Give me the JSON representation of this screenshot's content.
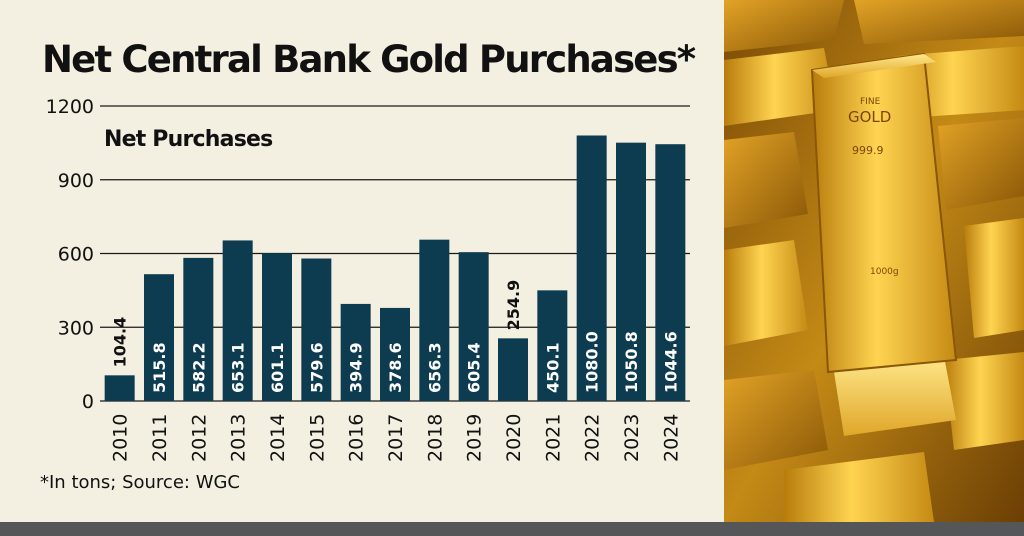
{
  "title": "Net Central Bank Gold Purchases*",
  "footnote": "*In tons; Source: WGC",
  "colors": {
    "bar": "#0d3b4f",
    "background": "#f3efe1",
    "footer_bar": "#555658",
    "gold": "#d9a521"
  },
  "photo": {
    "icon": "gold-bars-photo",
    "bar_engravings": [
      "FINE",
      "GOLD",
      "999.9",
      "1000g"
    ]
  },
  "chart_data": {
    "type": "bar",
    "title": "Net Central Bank Gold Purchases*",
    "ylabel": "Net Purchases",
    "xlabel": "",
    "ylim": [
      0,
      1200
    ],
    "yticks": [
      0,
      300,
      600,
      900,
      1200
    ],
    "grid": true,
    "categories": [
      "2010",
      "2011",
      "2012",
      "2013",
      "2014",
      "2015",
      "2016",
      "2017",
      "2018",
      "2019",
      "2020",
      "2021",
      "2022",
      "2023",
      "2024"
    ],
    "values": [
      104.4,
      515.8,
      582.2,
      653.1,
      601.1,
      579.6,
      394.9,
      378.6,
      656.3,
      605.4,
      254.9,
      450.1,
      1080.0,
      1050.8,
      1044.6
    ],
    "value_labels": [
      "104.4",
      "515.8",
      "582.2",
      "653.1",
      "601.1",
      "579.6",
      "394.9",
      "378.6",
      "656.3",
      "605.4",
      "254.9",
      "450.1",
      "1080.0",
      "1050.8",
      "1044.6"
    ]
  }
}
